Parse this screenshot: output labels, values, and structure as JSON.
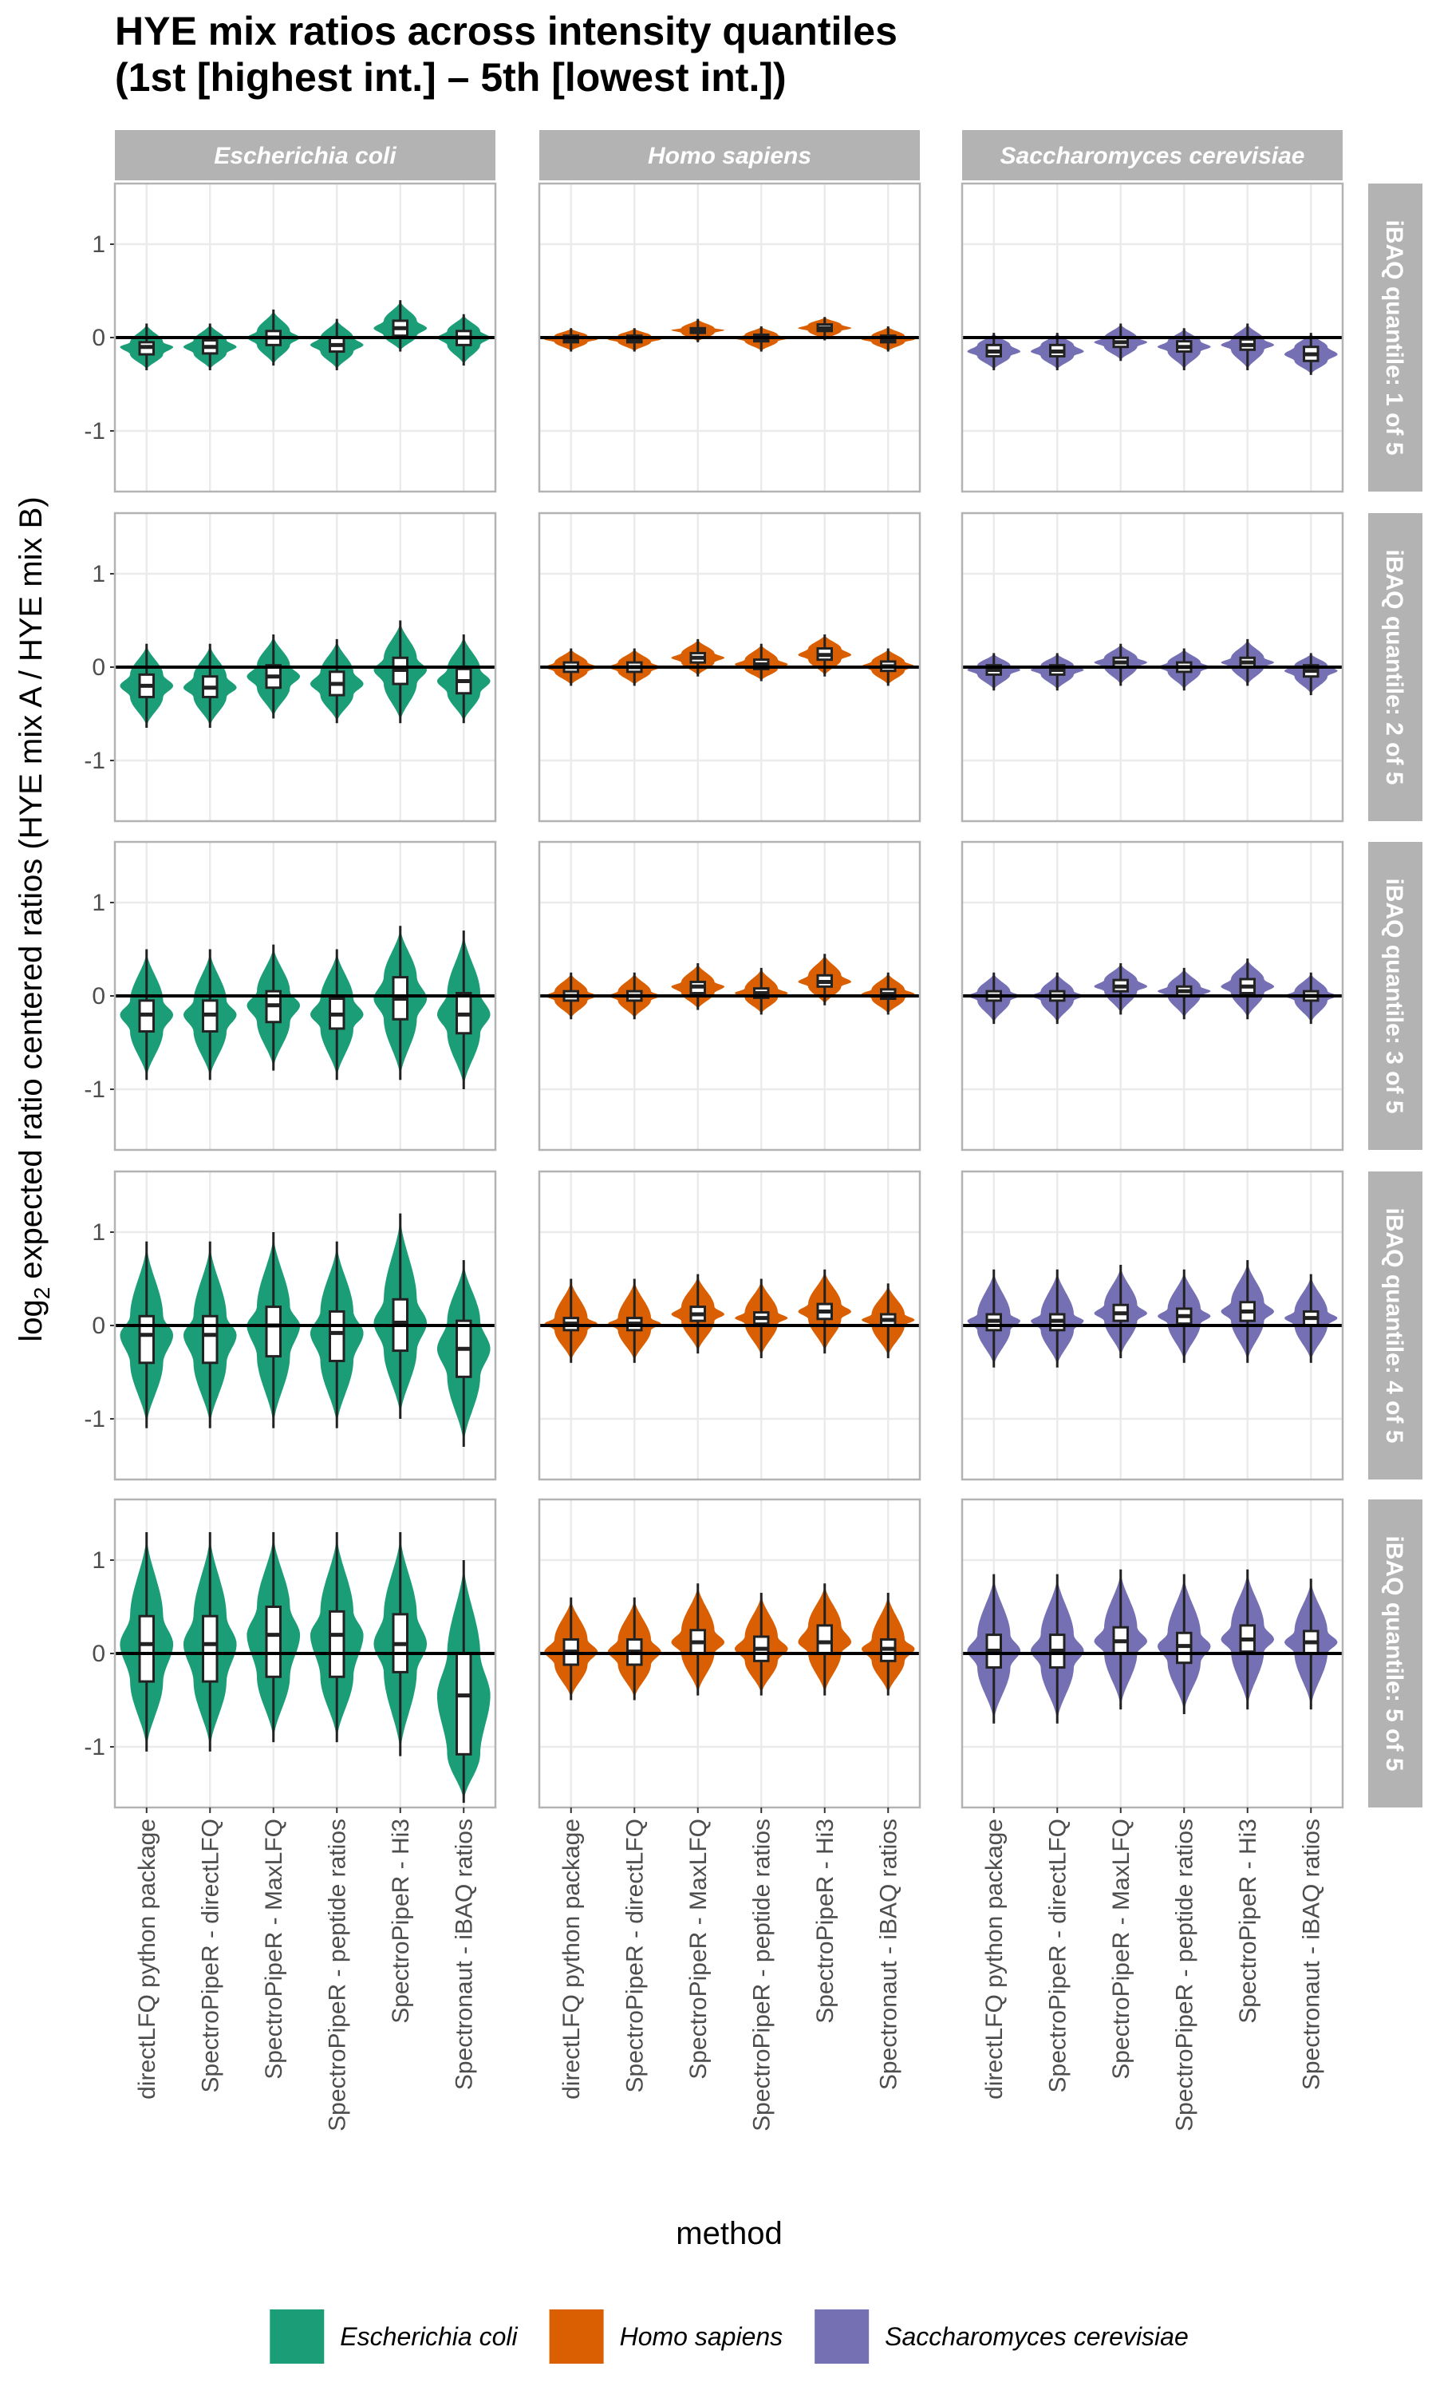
{
  "chart_data": {
    "type": "violin",
    "title": [
      "HYE mix ratios across intensity quantiles",
      "(1st [highest int.] – 5th [lowest int.])"
    ],
    "x_label": "method",
    "y_label_prefix": "log",
    "y_label_sub": "2",
    "y_label_rest": "expected ratio centered ratios (HYE mix A / HYE mix B)",
    "categories": [
      "directLFQ python package",
      "SpectroPipeR - directLFQ",
      "SpectroPipeR - MaxLFQ",
      "SpectroPipeR - peptide ratios",
      "SpectroPipeR - Hi3",
      "Spectronaut - iBAQ ratios"
    ],
    "rows": [
      "iBAQ quantile: 1 of 5",
      "iBAQ quantile: 2 of 5",
      "iBAQ quantile: 3 of 5",
      "iBAQ quantile: 4 of 5",
      "iBAQ quantile: 5 of 5"
    ],
    "ylim": [
      -1.65,
      1.65
    ],
    "yticks": [
      -1,
      0,
      1
    ],
    "hline": 0,
    "grid": true,
    "legend_position": "bottom",
    "series": [
      {
        "name": "Escherichia coli",
        "color": "#1b9e77",
        "panels": [
          [
            [
              -0.35,
              -0.18,
              -0.1,
              -0.05,
              0.15
            ],
            [
              -0.35,
              -0.17,
              -0.1,
              -0.03,
              0.15
            ],
            [
              -0.3,
              -0.08,
              0,
              0.07,
              0.3
            ],
            [
              -0.35,
              -0.15,
              -0.08,
              0,
              0.2
            ],
            [
              -0.15,
              0.02,
              0.1,
              0.18,
              0.4
            ],
            [
              -0.3,
              -0.08,
              0,
              0.07,
              0.25
            ]
          ],
          [
            [
              -0.65,
              -0.32,
              -0.2,
              -0.08,
              0.25
            ],
            [
              -0.65,
              -0.32,
              -0.22,
              -0.1,
              0.25
            ],
            [
              -0.55,
              -0.22,
              -0.1,
              0.02,
              0.35
            ],
            [
              -0.6,
              -0.3,
              -0.18,
              -0.05,
              0.3
            ],
            [
              -0.6,
              -0.18,
              -0.03,
              0.1,
              0.5
            ],
            [
              -0.6,
              -0.28,
              -0.15,
              -0.02,
              0.35
            ]
          ],
          [
            [
              -0.9,
              -0.38,
              -0.2,
              -0.05,
              0.5
            ],
            [
              -0.9,
              -0.38,
              -0.2,
              -0.05,
              0.5
            ],
            [
              -0.8,
              -0.28,
              -0.1,
              0.05,
              0.55
            ],
            [
              -0.9,
              -0.35,
              -0.2,
              -0.03,
              0.5
            ],
            [
              -0.9,
              -0.25,
              -0.03,
              0.2,
              0.75
            ],
            [
              -1.0,
              -0.4,
              -0.2,
              0.03,
              0.7
            ]
          ],
          [
            [
              -1.1,
              -0.4,
              -0.1,
              0.1,
              0.9
            ],
            [
              -1.1,
              -0.4,
              -0.1,
              0.1,
              0.9
            ],
            [
              -1.1,
              -0.33,
              0,
              0.2,
              1.0
            ],
            [
              -1.1,
              -0.38,
              -0.08,
              0.15,
              0.9
            ],
            [
              -1.0,
              -0.27,
              0.03,
              0.28,
              1.2
            ],
            [
              -1.3,
              -0.55,
              -0.25,
              0.05,
              0.7
            ]
          ],
          [
            [
              -1.05,
              -0.3,
              0.1,
              0.4,
              1.3
            ],
            [
              -1.05,
              -0.3,
              0.1,
              0.4,
              1.3
            ],
            [
              -0.95,
              -0.25,
              0.2,
              0.5,
              1.3
            ],
            [
              -0.95,
              -0.25,
              0.2,
              0.45,
              1.3
            ],
            [
              -1.1,
              -0.2,
              0.1,
              0.42,
              1.3
            ],
            [
              -1.6,
              -1.08,
              -0.45,
              0,
              1.0
            ]
          ]
        ]
      },
      {
        "name": "Homo sapiens",
        "color": "#d95f02",
        "panels": [
          [
            [
              -0.15,
              -0.05,
              -0.02,
              0.02,
              0.1
            ],
            [
              -0.15,
              -0.05,
              -0.02,
              0.02,
              0.1
            ],
            [
              -0.05,
              0.05,
              0.08,
              0.1,
              0.2
            ],
            [
              -0.15,
              -0.04,
              -0.01,
              0.03,
              0.12
            ],
            [
              -0.03,
              0.07,
              0.1,
              0.14,
              0.22
            ],
            [
              -0.15,
              -0.05,
              -0.02,
              0.02,
              0.12
            ]
          ],
          [
            [
              -0.2,
              -0.05,
              0,
              0.05,
              0.2
            ],
            [
              -0.2,
              -0.05,
              0,
              0.05,
              0.2
            ],
            [
              -0.1,
              0.05,
              0.1,
              0.15,
              0.3
            ],
            [
              -0.15,
              -0.02,
              0.03,
              0.08,
              0.25
            ],
            [
              -0.1,
              0.08,
              0.13,
              0.2,
              0.35
            ],
            [
              -0.2,
              -0.04,
              0.01,
              0.06,
              0.2
            ]
          ],
          [
            [
              -0.25,
              -0.05,
              0,
              0.05,
              0.25
            ],
            [
              -0.25,
              -0.05,
              0,
              0.05,
              0.25
            ],
            [
              -0.15,
              0.03,
              0.1,
              0.15,
              0.35
            ],
            [
              -0.2,
              -0.02,
              0.03,
              0.08,
              0.3
            ],
            [
              -0.1,
              0.1,
              0.15,
              0.22,
              0.45
            ],
            [
              -0.2,
              -0.03,
              0.02,
              0.07,
              0.25
            ]
          ],
          [
            [
              -0.4,
              -0.05,
              0.02,
              0.08,
              0.5
            ],
            [
              -0.4,
              -0.05,
              0.02,
              0.08,
              0.5
            ],
            [
              -0.3,
              0.05,
              0.12,
              0.2,
              0.55
            ],
            [
              -0.35,
              0.02,
              0.08,
              0.14,
              0.5
            ],
            [
              -0.3,
              0.07,
              0.15,
              0.23,
              0.6
            ],
            [
              -0.35,
              0,
              0.06,
              0.12,
              0.45
            ]
          ],
          [
            [
              -0.5,
              -0.12,
              0.02,
              0.15,
              0.6
            ],
            [
              -0.5,
              -0.12,
              0.02,
              0.15,
              0.6
            ],
            [
              -0.45,
              0,
              0.12,
              0.25,
              0.75
            ],
            [
              -0.45,
              -0.08,
              0.05,
              0.18,
              0.65
            ],
            [
              -0.45,
              0,
              0.12,
              0.3,
              0.75
            ],
            [
              -0.45,
              -0.08,
              0.05,
              0.15,
              0.65
            ]
          ]
        ]
      },
      {
        "name": "Saccharomyces cerevisiae",
        "color": "#7570b3",
        "panels": [
          [
            [
              -0.35,
              -0.2,
              -0.15,
              -0.08,
              0.05
            ],
            [
              -0.35,
              -0.2,
              -0.15,
              -0.08,
              0.05
            ],
            [
              -0.25,
              -0.1,
              -0.05,
              0,
              0.15
            ],
            [
              -0.35,
              -0.15,
              -0.1,
              -0.04,
              0.1
            ],
            [
              -0.35,
              -0.13,
              -0.08,
              -0.02,
              0.15
            ],
            [
              -0.4,
              -0.25,
              -0.18,
              -0.1,
              0.05
            ]
          ],
          [
            [
              -0.25,
              -0.08,
              -0.03,
              0.02,
              0.15
            ],
            [
              -0.25,
              -0.08,
              -0.03,
              0.02,
              0.15
            ],
            [
              -0.2,
              0,
              0.05,
              0.1,
              0.25
            ],
            [
              -0.25,
              -0.05,
              0,
              0.05,
              0.2
            ],
            [
              -0.2,
              0,
              0.05,
              0.1,
              0.3
            ],
            [
              -0.3,
              -0.1,
              -0.04,
              0.02,
              0.15
            ]
          ],
          [
            [
              -0.3,
              -0.05,
              0,
              0.05,
              0.25
            ],
            [
              -0.3,
              -0.05,
              0,
              0.05,
              0.25
            ],
            [
              -0.2,
              0.05,
              0.1,
              0.17,
              0.35
            ],
            [
              -0.25,
              0,
              0.05,
              0.1,
              0.3
            ],
            [
              -0.25,
              0.03,
              0.1,
              0.18,
              0.4
            ],
            [
              -0.3,
              -0.05,
              0,
              0.05,
              0.25
            ]
          ],
          [
            [
              -0.45,
              -0.05,
              0.05,
              0.12,
              0.6
            ],
            [
              -0.45,
              -0.05,
              0.05,
              0.12,
              0.6
            ],
            [
              -0.35,
              0.05,
              0.13,
              0.22,
              0.65
            ],
            [
              -0.4,
              0.02,
              0.1,
              0.18,
              0.6
            ],
            [
              -0.4,
              0.05,
              0.15,
              0.25,
              0.7
            ],
            [
              -0.4,
              0,
              0.08,
              0.15,
              0.55
            ]
          ],
          [
            [
              -0.75,
              -0.15,
              0.03,
              0.2,
              0.85
            ],
            [
              -0.75,
              -0.15,
              0.03,
              0.2,
              0.85
            ],
            [
              -0.6,
              0,
              0.13,
              0.28,
              0.9
            ],
            [
              -0.65,
              -0.1,
              0.08,
              0.22,
              0.85
            ],
            [
              -0.6,
              0.02,
              0.15,
              0.3,
              0.9
            ],
            [
              -0.6,
              0,
              0.12,
              0.24,
              0.8
            ]
          ]
        ]
      }
    ]
  }
}
